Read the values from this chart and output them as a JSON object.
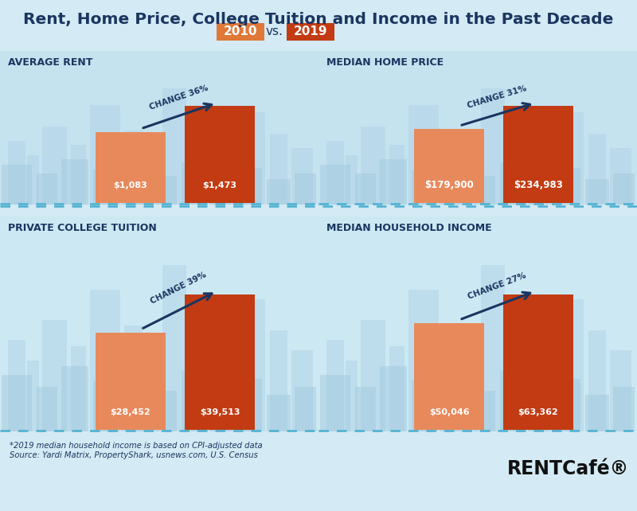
{
  "title": "Rent, Home Price, College Tuition and Income in the Past Decade",
  "bg_color": "#d4eaf4",
  "panel_bg_top": "#c5e2ef",
  "panel_bg_bot": "#cce8f3",
  "bar_color_2010": "#e8895c",
  "bar_color_2019": "#c23b12",
  "year_2010_color": "#e07838",
  "year_2019_color": "#c23b12",
  "label_color": "#1a3560",
  "arrow_color": "#1a3560",
  "panels": [
    {
      "title": "AVERAGE RENT",
      "val_2010": 1083,
      "val_2019": 1473,
      "label_2010": "$1,083",
      "label_2019": "$1,473",
      "change": "CHANGE 36%",
      "col": 0,
      "row": 1
    },
    {
      "title": "MEDIAN HOME PRICE",
      "val_2010": 179900,
      "val_2019": 234983,
      "label_2010": "$179,900",
      "label_2019": "$234,983",
      "change": "CHANGE 31%",
      "col": 1,
      "row": 1
    },
    {
      "title": "PRIVATE COLLEGE TUITION",
      "val_2010": 28452,
      "val_2019": 39513,
      "label_2010": "$28,452",
      "label_2019": "$39,513",
      "change": "CHANGE 39%",
      "col": 0,
      "row": 0
    },
    {
      "title": "MEDIAN HOUSEHOLD INCOME",
      "val_2010": 50046,
      "val_2019": 63362,
      "label_2010": "$50,046",
      "label_2019": "$63,362",
      "change": "CHANGE 27%",
      "col": 1,
      "row": 0
    }
  ],
  "footnote1": "*2019 median household income is based on CPI-adjusted data",
  "footnote2": "Source: Yardi Matrix, PropertyShark, usnews.com, U.S. Census",
  "brand": "RENTCafé®",
  "skyline_color": "#b2d5e8",
  "dashed_line_color": "#4aafd0"
}
